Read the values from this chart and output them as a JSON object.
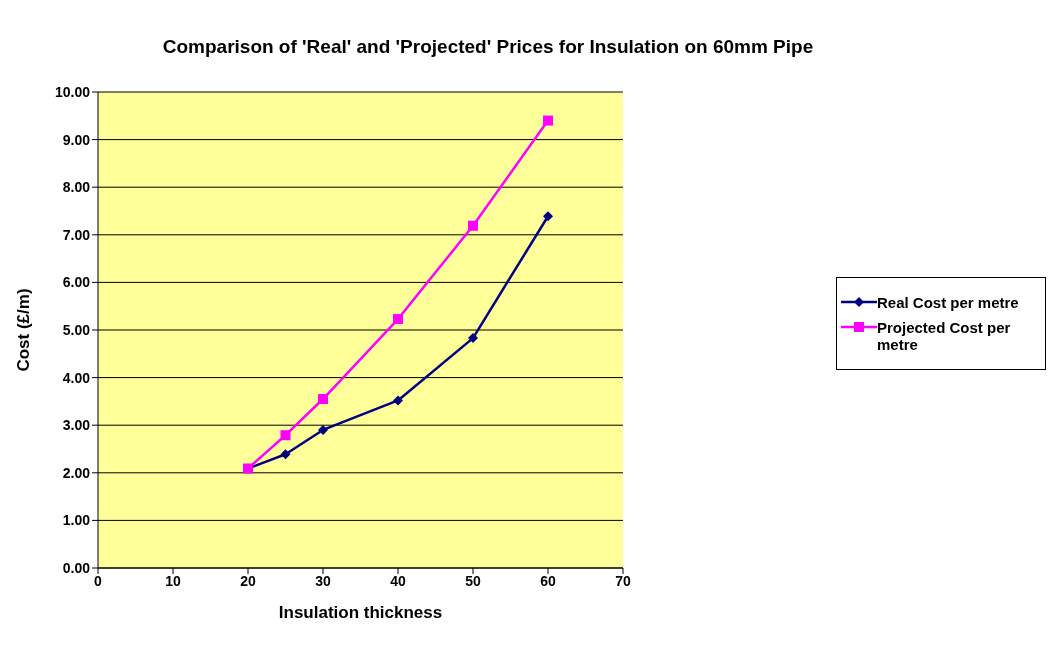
{
  "chart_data": {
    "type": "line",
    "title": "Comparison of 'Real' and 'Projected' Prices for Insulation on 60mm Pipe",
    "xlabel": "Insulation thickness",
    "ylabel": "Cost (£/m)",
    "x": [
      20,
      25,
      30,
      40,
      50,
      60
    ],
    "series": [
      {
        "name": "Real Cost per metre",
        "color": "#000080",
        "marker": "diamond",
        "values": [
          2.09,
          2.39,
          2.9,
          3.52,
          4.83,
          7.39
        ]
      },
      {
        "name": "Projected Cost per metre",
        "color": "#ff00ff",
        "marker": "square",
        "values": [
          2.09,
          2.79,
          3.55,
          5.23,
          7.19,
          9.4
        ]
      }
    ],
    "xlim": [
      0,
      70
    ],
    "xticks": [
      0,
      10,
      20,
      30,
      40,
      50,
      60,
      70
    ],
    "ylim": [
      0,
      10
    ],
    "yticks": [
      {
        "value": 0,
        "label": "0.00"
      },
      {
        "value": 1,
        "label": "1.00"
      },
      {
        "value": 2,
        "label": "2.00"
      },
      {
        "value": 3,
        "label": "3.00"
      },
      {
        "value": 4,
        "label": "4.00"
      },
      {
        "value": 5,
        "label": "5.00"
      },
      {
        "value": 6,
        "label": "6.00"
      },
      {
        "value": 7,
        "label": "7.00"
      },
      {
        "value": 8,
        "label": "8.00"
      },
      {
        "value": 9,
        "label": "9.00"
      },
      {
        "value": 10,
        "label": "10.00"
      }
    ],
    "grid": "y",
    "legend": "right"
  }
}
